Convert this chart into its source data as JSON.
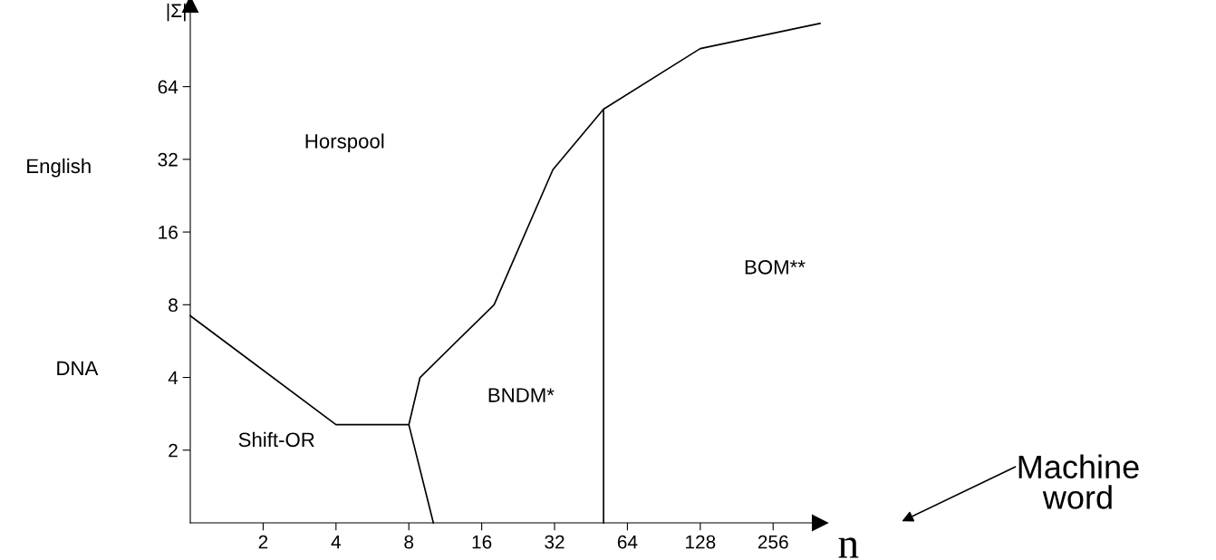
{
  "chart_data": {
    "type": "line",
    "xlabel": "n",
    "ylabel": "|Σ|",
    "log": "xy",
    "grid": false,
    "marker": "none",
    "line_style": "solid",
    "xlim": [
      1,
      400
    ],
    "ylim": [
      1,
      140
    ],
    "xticks": [
      2,
      4,
      8,
      16,
      32,
      64,
      128,
      256
    ],
    "yticks": [
      2,
      4,
      8,
      16,
      32,
      64
    ],
    "series": [
      {
        "color": "#000000",
        "x": [
          1,
          4,
          8,
          10.1
        ],
        "values": [
          7.2,
          2.55,
          2.55,
          1
        ]
      },
      {
        "color": "#000000",
        "x": [
          8,
          8.9,
          18,
          31.5,
          51,
          128,
          400
        ],
        "values": [
          2.55,
          4,
          8,
          29,
          51.6,
          92,
          117
        ]
      },
      {
        "color": "#000000",
        "x": [
          51,
          51
        ],
        "values": [
          1,
          51.6
        ]
      }
    ],
    "annotations": [
      "Horspool",
      "Shift-OR",
      "BNDM*",
      "BOM**",
      "English",
      "DNA",
      "Machine\nword"
    ]
  }
}
